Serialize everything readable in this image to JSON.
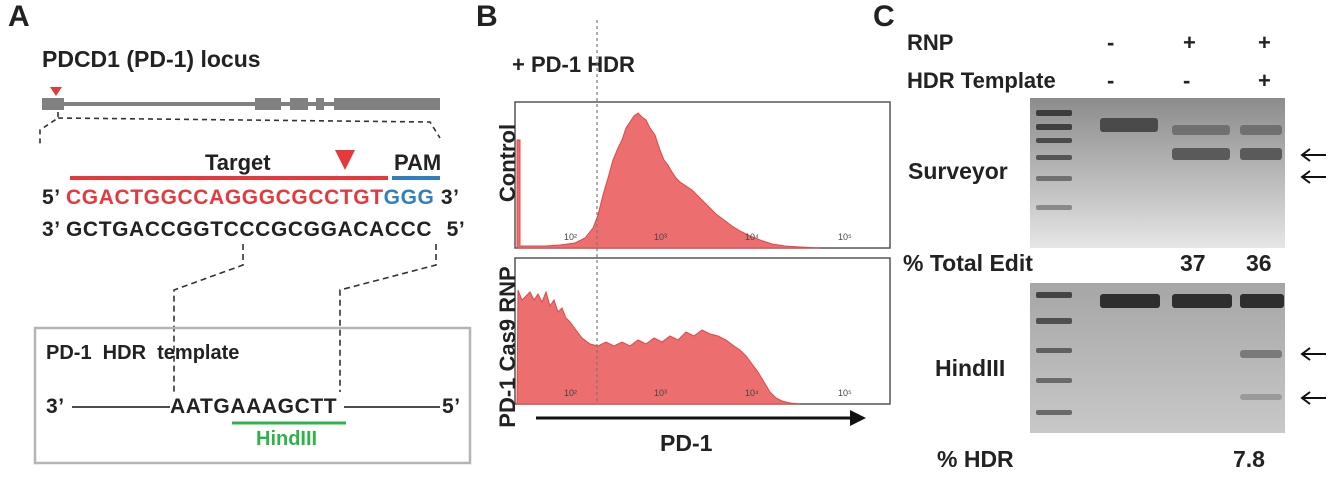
{
  "panel_a": {
    "letter": "A",
    "locus_title": "PDCD1 (PD-1) locus",
    "target_label": "Target",
    "pam_label": "PAM",
    "top_prefix": "5’",
    "top_target": "CGACTGGCCAGGGCGCCTGT",
    "top_pam": "GGG",
    "top_suffix": "3’",
    "bottom_prefix": "3’",
    "bottom_seq": "GCTGACCGGTCCCGCGGACACCC",
    "bottom_suffix": "5’",
    "hdr_title": "PD-1  HDR  template",
    "hdr_left": "3’",
    "hdr_seq": "AATGAAAGCTT",
    "hdr_right": "5’",
    "site_label": "HindIII",
    "colors": {
      "target": "#e8383d",
      "pam": "#2f7fc1",
      "hindiii": "#2db34a",
      "locus": "#808080"
    }
  },
  "panel_b": {
    "letter": "B",
    "condition": "+ PD-1 HDR",
    "histograms": [
      {
        "label": "Control",
        "ticks": [
          "10²",
          "10³",
          "10⁴",
          "10⁵"
        ]
      },
      {
        "label": "PD-1 Cas9 RNP",
        "ticks": [
          "10²",
          "10³",
          "10⁴",
          "10⁵"
        ]
      }
    ],
    "xlabel": "PD-1",
    "fill_color": "#ec6e6e"
  },
  "panel_c": {
    "letter": "C",
    "row1_label": "RNP",
    "row1_values": [
      "-",
      "+",
      "+"
    ],
    "row2_label": "HDR Template",
    "row2_values": [
      "-",
      "-",
      "+"
    ],
    "gel1_label": "Surveyor",
    "total_edit_label": "% Total Edit",
    "total_edit_values": [
      "",
      "37",
      "36"
    ],
    "gel2_label": "HindIII",
    "hdr_label": "% HDR",
    "hdr_values": [
      "",
      "",
      "7.8"
    ]
  }
}
